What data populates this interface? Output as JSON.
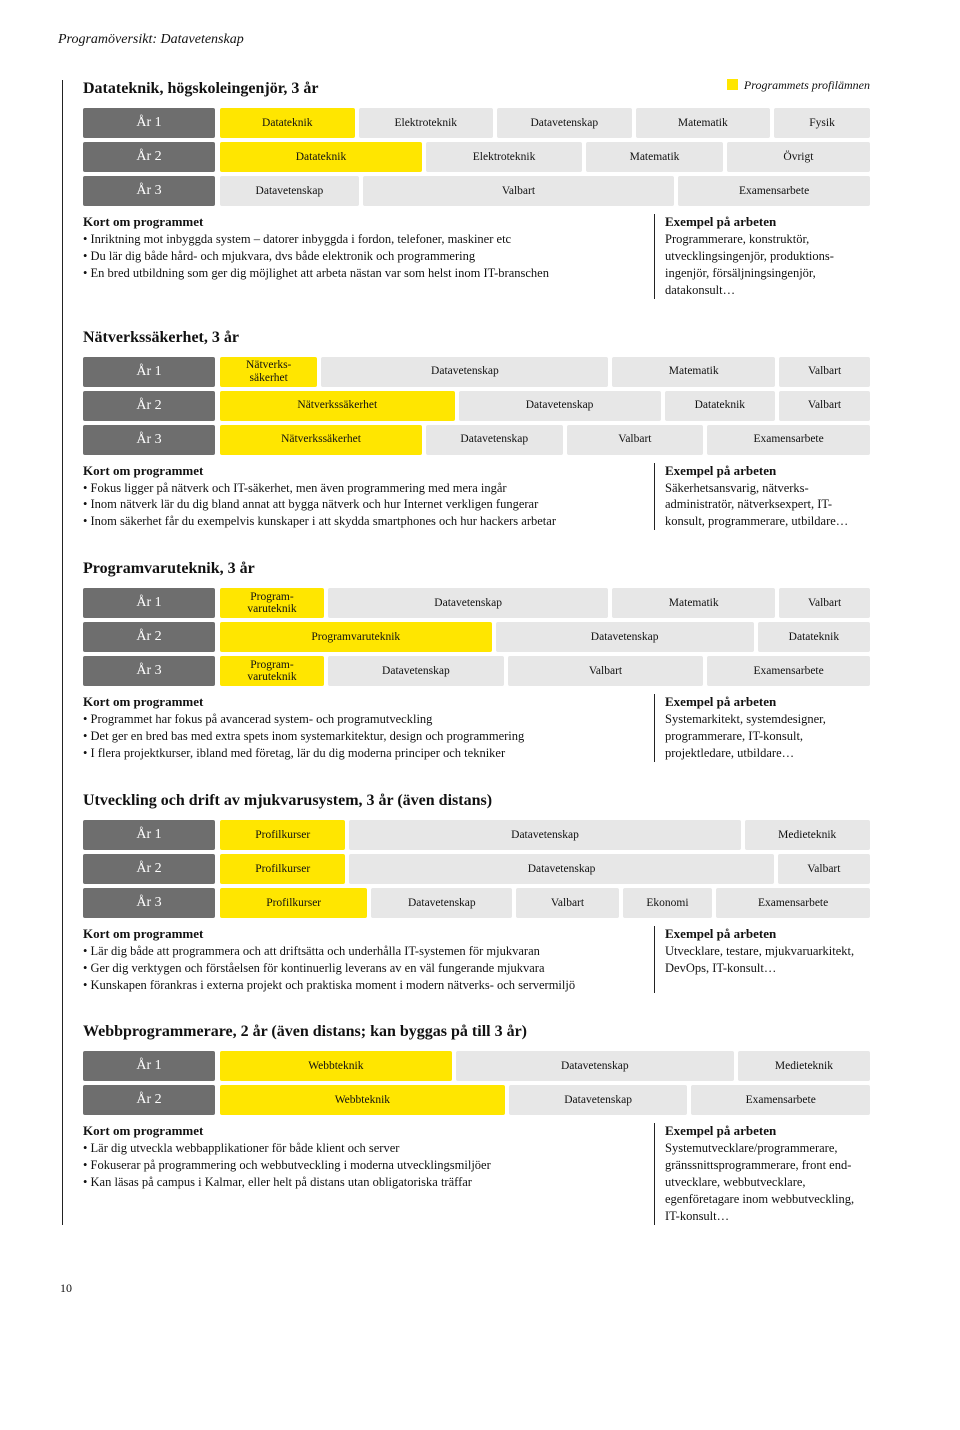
{
  "colors": {
    "yellow": "#ffe600",
    "grayCell": "#e7e7e7",
    "grayYear": "#6e6e6e"
  },
  "page": {
    "head": "Programöversikt: Datavetenskap",
    "legend": "Programmets profilämnen",
    "pageNum": "10"
  },
  "programs": [
    {
      "title": "Datateknik, högskoleingenjör, 3 år",
      "showLegend": true,
      "rows": [
        {
          "year": "År 1",
          "cells": [
            {
              "label": "Datateknik",
              "w": 2,
              "c": "yellow"
            },
            {
              "label": "Elektroteknik",
              "w": 2,
              "c": "grayCell"
            },
            {
              "label": "Datavetenskap",
              "w": 2,
              "c": "grayCell"
            },
            {
              "label": "Matematik",
              "w": 2,
              "c": "grayCell"
            },
            {
              "label": "Fysik",
              "w": 1.4,
              "c": "grayCell"
            }
          ]
        },
        {
          "year": "År 2",
          "cells": [
            {
              "label": "Datateknik",
              "w": 3,
              "c": "yellow"
            },
            {
              "label": "Elektroteknik",
              "w": 2.3,
              "c": "grayCell"
            },
            {
              "label": "Matematik",
              "w": 2,
              "c": "grayCell"
            },
            {
              "label": "Övrigt",
              "w": 2.1,
              "c": "grayCell"
            }
          ]
        },
        {
          "year": "År 3",
          "cells": [
            {
              "label": "Datavetenskap",
              "w": 2,
              "c": "grayCell"
            },
            {
              "label": "Valbart",
              "w": 4.6,
              "c": "grayCell"
            },
            {
              "label": "Examensarbete",
              "w": 2.8,
              "c": "grayCell"
            }
          ]
        }
      ],
      "kortTitle": "Kort om programmet",
      "kort": [
        "Inriktning mot inbyggda system – datorer inbyggda i fordon, telefoner, maskiner etc",
        "Du lär dig både hård- och mjukvara, dvs både elektronik och programmering",
        "En bred utbildning som ger dig möjlighet att arbeta nästan var som helst inom IT-branschen"
      ],
      "exTitle": "Exempel på arbeten",
      "ex": "Programmerare, konstruktör, utvecklingsingenjör, produktions­ingenjör, försäljningsingenjör, datakonsult…"
    },
    {
      "title": "Nätverkssäkerhet, 3 år",
      "rows": [
        {
          "year": "År 1",
          "cells": [
            {
              "label": "Nätverks-\nsäkerhet",
              "w": 1.4,
              "c": "yellow"
            },
            {
              "label": "Datavetenskap",
              "w": 4.3,
              "c": "grayCell"
            },
            {
              "label": "Matematik",
              "w": 2.4,
              "c": "grayCell"
            },
            {
              "label": "Valbart",
              "w": 1.3,
              "c": "grayCell"
            }
          ]
        },
        {
          "year": "År 2",
          "cells": [
            {
              "label": "Nätverkssäkerhet",
              "w": 3.5,
              "c": "yellow"
            },
            {
              "label": "Datavetenskap",
              "w": 3,
              "c": "grayCell"
            },
            {
              "label": "Datateknik",
              "w": 1.6,
              "c": "grayCell"
            },
            {
              "label": "Valbart",
              "w": 1.3,
              "c": "grayCell"
            }
          ]
        },
        {
          "year": "År 3",
          "cells": [
            {
              "label": "Nätverkssäkerhet",
              "w": 3,
              "c": "yellow"
            },
            {
              "label": "Datavetenskap",
              "w": 2,
              "c": "grayCell"
            },
            {
              "label": "Valbart",
              "w": 2,
              "c": "grayCell"
            },
            {
              "label": "Examensarbete",
              "w": 2.4,
              "c": "grayCell"
            }
          ]
        }
      ],
      "kortTitle": "Kort om programmet",
      "kort": [
        "Fokus ligger på nätverk och IT-säkerhet, men även programmering med mera ingår",
        "Inom nätverk lär du dig bland annat att bygga nätverk och hur Internet verkligen fungerar",
        "Inom säkerhet får du exempelvis kunskaper i att skydda smartphones och hur hackers arbetar"
      ],
      "exTitle": "Exempel på arbeten",
      "ex": "Säkerhetsansvarig, nätverks­administratör, nätverksexpert, IT-konsult, programmerare, utbildare…"
    },
    {
      "title": "Programvaruteknik, 3 år",
      "rows": [
        {
          "year": "År 1",
          "cells": [
            {
              "label": "Program-\nvaruteknik",
              "w": 1.5,
              "c": "yellow"
            },
            {
              "label": "Datavetenskap",
              "w": 4.2,
              "c": "grayCell"
            },
            {
              "label": "Matematik",
              "w": 2.4,
              "c": "grayCell"
            },
            {
              "label": "Valbart",
              "w": 1.3,
              "c": "grayCell"
            }
          ]
        },
        {
          "year": "År 2",
          "cells": [
            {
              "label": "Programvaruteknik",
              "w": 4,
              "c": "yellow"
            },
            {
              "label": "Datavetenskap",
              "w": 3.8,
              "c": "grayCell"
            },
            {
              "label": "Datateknik",
              "w": 1.6,
              "c": "grayCell"
            }
          ]
        },
        {
          "year": "År 3",
          "cells": [
            {
              "label": "Program-\nvaruteknik",
              "w": 1.5,
              "c": "yellow"
            },
            {
              "label": "Datavetenskap",
              "w": 2.6,
              "c": "grayCell"
            },
            {
              "label": "Valbart",
              "w": 2.9,
              "c": "grayCell"
            },
            {
              "label": "Examensarbete",
              "w": 2.4,
              "c": "grayCell"
            }
          ]
        }
      ],
      "kortTitle": "Kort om programmet",
      "kort": [
        "Programmet har fokus på avancerad system- och programutveckling",
        "Det ger en bred bas med extra spets inom systemarkitektur, design och programmering",
        "I flera projektkurser, ibland med företag, lär du dig moderna principer och tekniker"
      ],
      "exTitle": "Exempel på arbeten",
      "ex": "Systemarkitekt, systemdesigner, programmerare, IT-konsult, projektledare, utbildare…"
    },
    {
      "title": "Utveckling och drift av mjukvarusystem, 3 år (även distans)",
      "rows": [
        {
          "year": "År 1",
          "cells": [
            {
              "label": "Profilkurser",
              "w": 1.8,
              "c": "yellow"
            },
            {
              "label": "Datavetenskap",
              "w": 5.8,
              "c": "grayCell"
            },
            {
              "label": "Medieteknik",
              "w": 1.8,
              "c": "grayCell"
            }
          ]
        },
        {
          "year": "År 2",
          "cells": [
            {
              "label": "Profilkurser",
              "w": 1.8,
              "c": "yellow"
            },
            {
              "label": "Datavetenskap",
              "w": 6.3,
              "c": "grayCell"
            },
            {
              "label": "Valbart",
              "w": 1.3,
              "c": "grayCell"
            }
          ]
        },
        {
          "year": "År 3",
          "cells": [
            {
              "label": "Profilkurser",
              "w": 2.2,
              "c": "yellow"
            },
            {
              "label": "Datavetenskap",
              "w": 2.1,
              "c": "grayCell"
            },
            {
              "label": "Valbart",
              "w": 1.5,
              "c": "grayCell"
            },
            {
              "label": "Ekonomi",
              "w": 1.3,
              "c": "grayCell"
            },
            {
              "label": "Examensarbete",
              "w": 2.3,
              "c": "grayCell"
            }
          ]
        }
      ],
      "kortTitle": "Kort om programmet",
      "kort": [
        "Lär dig både att programmera och att driftsätta och underhålla IT-systemen för mjukvaran",
        "Ger dig verktygen och förståelsen för kontinuerlig leverans av en väl fungerande mjukvara",
        "Kunskapen förankras i externa projekt och praktiska moment i modern nätverks- och servermiljö"
      ],
      "exTitle": "Exempel på arbeten",
      "ex": "Utvecklare, testare, mjukvaru­arkitekt, DevOps, IT-konsult…"
    },
    {
      "title": "Webbprogrammerare, 2 år (även distans; kan byggas på till 3 år)",
      "rows": [
        {
          "year": "År 1",
          "cells": [
            {
              "label": "Webbteknik",
              "w": 3.4,
              "c": "yellow"
            },
            {
              "label": "Datavetenskap",
              "w": 4.1,
              "c": "grayCell"
            },
            {
              "label": "Medieteknik",
              "w": 1.9,
              "c": "grayCell"
            }
          ]
        },
        {
          "year": "År 2",
          "cells": [
            {
              "label": "Webbteknik",
              "w": 4.2,
              "c": "yellow"
            },
            {
              "label": "Datavetenskap",
              "w": 2.6,
              "c": "grayCell"
            },
            {
              "label": "Examensarbete",
              "w": 2.6,
              "c": "grayCell"
            }
          ]
        }
      ],
      "kortTitle": "Kort om programmet",
      "kort": [
        "Lär dig utveckla webbapplikationer för både klient och server",
        "Fokuserar på programmering och webbutveckling i moderna utvecklingsmiljöer",
        "Kan läsas på campus i Kalmar, eller helt på distans utan obligatoriska träffar"
      ],
      "exTitle": "Exempel på arbeten",
      "ex": "Systemutvecklare/programmerare, gränssnittsprogrammerare, front end-utvecklare, webb­utvecklare, egenföretagare inom webbutveckling, IT-konsult…"
    }
  ]
}
